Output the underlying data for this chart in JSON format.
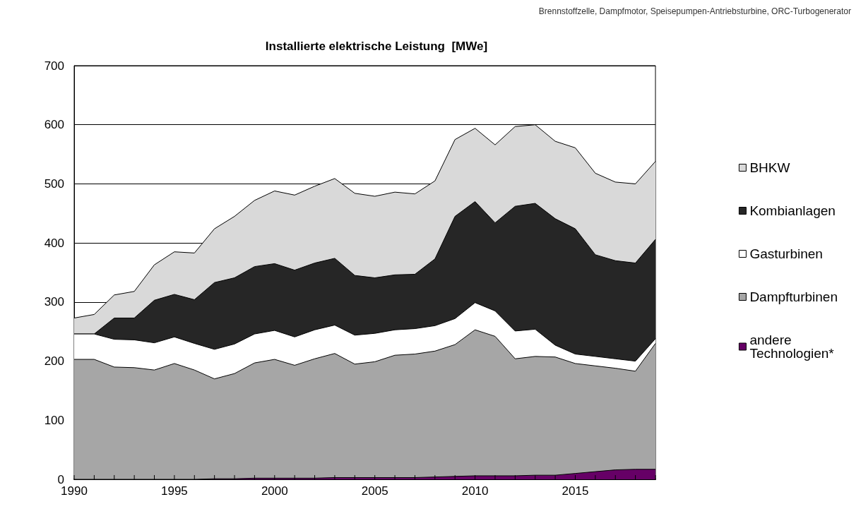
{
  "chart_data": {
    "type": "area",
    "stacked": true,
    "title": "Installierte elektrische Leistung  [MWe]",
    "x": [
      1990,
      1991,
      1992,
      1993,
      1994,
      1995,
      1996,
      1997,
      1998,
      1999,
      2000,
      2001,
      2002,
      2003,
      2004,
      2005,
      2006,
      2007,
      2008,
      2009,
      2010,
      2011,
      2012,
      2013,
      2014,
      2015,
      2016,
      2017,
      2018,
      2019
    ],
    "series": [
      {
        "name": "andere Technologien*",
        "color": "#660066",
        "values": [
          0,
          0,
          0,
          0,
          0,
          0,
          0,
          1,
          1,
          2,
          2,
          2,
          2,
          3,
          3,
          3,
          3,
          3,
          4,
          5,
          6,
          6,
          6,
          7,
          7,
          10,
          13,
          16,
          17,
          17
        ]
      },
      {
        "name": "Dampfturbinen",
        "color": "#a6a6a6",
        "values": [
          203,
          203,
          190,
          189,
          185,
          196,
          185,
          169,
          178,
          195,
          201,
          191,
          202,
          210,
          192,
          196,
          207,
          209,
          213,
          223,
          247,
          236,
          198,
          201,
          200,
          186,
          179,
          172,
          166,
          213
        ]
      },
      {
        "name": "Gasturbinen",
        "color": "#ffffff",
        "values": [
          43,
          43,
          47,
          47,
          46,
          45,
          45,
          50,
          50,
          49,
          49,
          48,
          49,
          48,
          49,
          48,
          43,
          43,
          43,
          44,
          46,
          43,
          47,
          46,
          20,
          16,
          16,
          16,
          17,
          8
        ]
      },
      {
        "name": "Kombianlagen",
        "color": "#262626",
        "values": [
          0,
          0,
          36,
          37,
          72,
          72,
          74,
          113,
          112,
          114,
          113,
          113,
          113,
          113,
          101,
          94,
          93,
          92,
          113,
          173,
          171,
          149,
          211,
          213,
          214,
          212,
          172,
          166,
          166,
          168
        ]
      },
      {
        "name": "BHKW",
        "color": "#d9d9d9",
        "values": [
          27,
          33,
          39,
          45,
          60,
          72,
          79,
          91,
          104,
          112,
          123,
          127,
          130,
          135,
          139,
          138,
          140,
          136,
          132,
          130,
          124,
          132,
          135,
          133,
          131,
          137,
          138,
          133,
          134,
          132
        ]
      }
    ],
    "xlim": [
      1990,
      2019
    ],
    "xticks": [
      1990,
      {
        "value": 1991,
        "label": null
      },
      {
        "value": 1992,
        "label": null
      },
      {
        "value": 1993,
        "label": null
      },
      {
        "value": 1994,
        "label": null
      },
      1995,
      {
        "value": 1996,
        "label": null
      },
      {
        "value": 1997,
        "label": null
      },
      {
        "value": 1998,
        "label": null
      },
      {
        "value": 1999,
        "label": null
      },
      2000,
      {
        "value": 2001,
        "label": null
      },
      {
        "value": 2002,
        "label": null
      },
      {
        "value": 2003,
        "label": null
      },
      {
        "value": 2004,
        "label": null
      },
      2005,
      {
        "value": 2006,
        "label": null
      },
      {
        "value": 2007,
        "label": null
      },
      {
        "value": 2008,
        "label": null
      },
      {
        "value": 2009,
        "label": null
      },
      2010,
      {
        "value": 2011,
        "label": null
      },
      {
        "value": 2012,
        "label": null
      },
      {
        "value": 2013,
        "label": null
      },
      {
        "value": 2014,
        "label": null
      },
      2015,
      {
        "value": 2016,
        "label": null
      },
      {
        "value": 2017,
        "label": null
      },
      {
        "value": 2018,
        "label": null
      },
      {
        "value": 2019,
        "label": null
      }
    ],
    "ylim": [
      0,
      700
    ],
    "yticks": [
      0,
      100,
      200,
      300,
      400,
      500,
      600,
      700
    ],
    "grid": "y",
    "legend": "right",
    "marker": "none",
    "annotations": [
      "Brennstoffzelle, Dampfmotor, Speisepumpen-Antriebsturbine, ORC-Turbogenerator"
    ]
  }
}
